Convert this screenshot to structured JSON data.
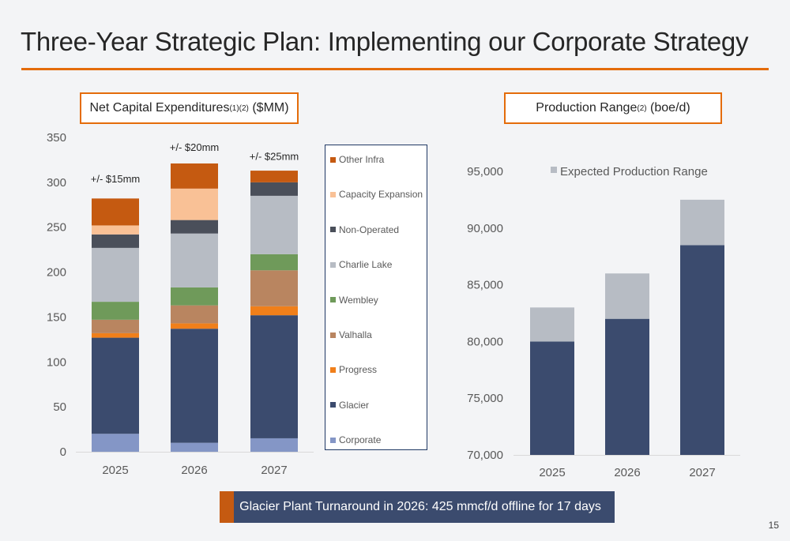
{
  "slide": {
    "title": "Three-Year Strategic Plan: Implementing our Corporate Strategy",
    "page_number": "15",
    "banner_text": "Glacier Plant Turnaround in 2026: 425 mmcf/d offline for 17 days",
    "accent_color": "#e46c0a"
  },
  "capex_box": {
    "text": "Net Capital Expenditures",
    "sup": "(1)(2)",
    "unit": " ($MM)"
  },
  "production_box": {
    "text": "Production Range",
    "sup": "(2)",
    "unit": " (boe/d)"
  },
  "chart_data": [
    {
      "type": "bar",
      "stacked": true,
      "categories": [
        "2025",
        "2026",
        "2027"
      ],
      "ylim": [
        0,
        350
      ],
      "yticks": [
        0,
        50,
        100,
        150,
        200,
        250,
        300,
        350
      ],
      "series": [
        {
          "name": "Corporate",
          "color": "#8496c6",
          "values": [
            20,
            10,
            15
          ]
        },
        {
          "name": "Glacier",
          "color": "#3b4b6e",
          "values": [
            107,
            127,
            137
          ]
        },
        {
          "name": "Progress",
          "color": "#f07f1a",
          "values": [
            5,
            6,
            10
          ]
        },
        {
          "name": "Valhalla",
          "color": "#b98560",
          "values": [
            15,
            20,
            40
          ]
        },
        {
          "name": "Wembley",
          "color": "#6f9a5a",
          "values": [
            20,
            20,
            18
          ]
        },
        {
          "name": "Charlie Lake",
          "color": "#b7bcc4",
          "values": [
            60,
            60,
            65
          ]
        },
        {
          "name": "Non-Operated",
          "color": "#4a4f5a",
          "values": [
            15,
            15,
            15
          ]
        },
        {
          "name": "Capacity Expansion",
          "color": "#f9c196",
          "values": [
            10,
            35,
            0
          ]
        },
        {
          "name": "Other Infra",
          "color": "#c55a11",
          "values": [
            30,
            28,
            13
          ]
        }
      ],
      "annotations": [
        "+/- $15mm",
        "+/- $20mm",
        "+/- $25mm"
      ],
      "annotation_values": [
        300,
        335,
        325
      ],
      "legend_position": "right"
    },
    {
      "type": "bar",
      "stacked": true,
      "categories": [
        "2025",
        "2026",
        "2027"
      ],
      "ylim": [
        70000,
        95000
      ],
      "yticks": [
        "70,000",
        "75,000",
        "80,000",
        "85,000",
        "90,000",
        "95,000"
      ],
      "series": [
        {
          "name": "",
          "color": "#3b4b6e",
          "low": [
            80000,
            82000,
            88500
          ]
        },
        {
          "name": "Expected Production Range",
          "color": "#b7bcc4",
          "high": [
            83000,
            86000,
            92500
          ]
        }
      ],
      "legend_position": "top"
    }
  ]
}
